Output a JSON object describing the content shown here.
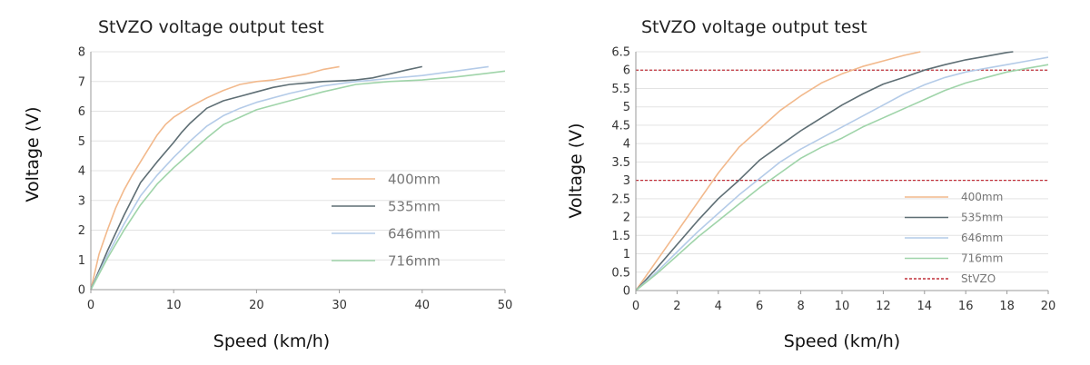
{
  "chart_data": [
    {
      "type": "line",
      "title": "StVZO  voltage  output  test",
      "xlabel": "Speed (km/h)",
      "ylabel": "Voltage (V)",
      "xlim": [
        0,
        50
      ],
      "ylim": [
        0,
        8
      ],
      "xticks": [
        "0",
        "10",
        "20",
        "30",
        "40",
        "50"
      ],
      "yticks": [
        "0",
        "1",
        "2",
        "3",
        "4",
        "5",
        "6",
        "7",
        "8"
      ],
      "legend_position": "center-right",
      "series": [
        {
          "name": "400mm",
          "color": "#f2b98c",
          "x": [
            0,
            1,
            2,
            3,
            4,
            5,
            6,
            7,
            8,
            9,
            10,
            12,
            14,
            16,
            18,
            20,
            22,
            24,
            26,
            28,
            30
          ],
          "y": [
            0,
            1.2,
            2.0,
            2.75,
            3.35,
            3.85,
            4.3,
            4.75,
            5.2,
            5.55,
            5.8,
            6.15,
            6.45,
            6.7,
            6.9,
            7.0,
            7.05,
            7.15,
            7.25,
            7.4,
            7.5
          ]
        },
        {
          "name": "535mm",
          "color": "#5e6e74",
          "x": [
            0,
            2,
            4,
            6,
            8,
            10,
            11,
            12,
            14,
            16,
            18,
            20,
            22,
            24,
            26,
            28,
            30,
            32,
            34,
            36,
            38,
            40
          ],
          "y": [
            0,
            1.3,
            2.5,
            3.6,
            4.3,
            4.95,
            5.3,
            5.6,
            6.1,
            6.35,
            6.5,
            6.65,
            6.8,
            6.9,
            6.95,
            7.0,
            7.02,
            7.05,
            7.12,
            7.25,
            7.38,
            7.5
          ]
        },
        {
          "name": "646mm",
          "color": "#b4cbe8",
          "x": [
            0,
            2,
            4,
            6,
            8,
            10,
            12,
            14,
            16,
            18,
            20,
            24,
            28,
            32,
            36,
            40,
            44,
            48
          ],
          "y": [
            0,
            1.15,
            2.2,
            3.15,
            3.85,
            4.45,
            5.0,
            5.5,
            5.85,
            6.1,
            6.3,
            6.6,
            6.85,
            7.0,
            7.1,
            7.2,
            7.35,
            7.5
          ]
        },
        {
          "name": "716mm",
          "color": "#9fd4a9",
          "x": [
            0,
            2,
            4,
            6,
            8,
            10,
            12,
            14,
            16,
            18,
            20,
            24,
            28,
            32,
            36,
            40,
            44,
            48,
            50
          ],
          "y": [
            0,
            1.05,
            2.0,
            2.85,
            3.55,
            4.1,
            4.6,
            5.1,
            5.55,
            5.8,
            6.05,
            6.35,
            6.65,
            6.9,
            7.0,
            7.05,
            7.15,
            7.28,
            7.35
          ]
        }
      ]
    },
    {
      "type": "line",
      "title": "StVZO  voltage  output  test",
      "xlabel": "Speed (km/h)",
      "ylabel": "Voltage (V)",
      "xlim": [
        0,
        20
      ],
      "ylim": [
        0,
        6.5
      ],
      "xticks": [
        "0",
        "2",
        "4",
        "6",
        "8",
        "10",
        "12",
        "14",
        "16",
        "18",
        "20"
      ],
      "yticks": [
        "0",
        "0.5",
        "1",
        "1.5",
        "2",
        "2.5",
        "3",
        "3.5",
        "4",
        "4.5",
        "5",
        "5.5",
        "6",
        "6.5"
      ],
      "legend_position": "bottom-right",
      "reference_lines": [
        {
          "name": "StVZO",
          "color": "#c0303a",
          "y": 3
        },
        {
          "name": "StVZO",
          "color": "#c0303a",
          "y": 6
        }
      ],
      "series": [
        {
          "name": "400mm",
          "color": "#f2b98c",
          "x": [
            0,
            1,
            2,
            3,
            4,
            5,
            6,
            7,
            8,
            9,
            10,
            11,
            12,
            13,
            13.8
          ],
          "y": [
            0,
            0.8,
            1.6,
            2.4,
            3.2,
            3.9,
            4.4,
            4.9,
            5.3,
            5.65,
            5.9,
            6.1,
            6.25,
            6.4,
            6.5
          ]
        },
        {
          "name": "535mm",
          "color": "#5e6e74",
          "x": [
            0,
            1,
            2,
            3,
            4,
            5,
            6,
            7,
            8,
            9,
            10,
            11,
            12,
            13,
            14,
            15,
            16,
            17,
            18,
            18.3
          ],
          "y": [
            0,
            0.6,
            1.25,
            1.9,
            2.5,
            3.0,
            3.55,
            3.95,
            4.35,
            4.7,
            5.05,
            5.35,
            5.62,
            5.8,
            6.0,
            6.15,
            6.28,
            6.38,
            6.48,
            6.5
          ]
        },
        {
          "name": "646mm",
          "color": "#b4cbe8",
          "x": [
            0,
            1,
            2,
            3,
            4,
            5,
            6,
            7,
            8,
            9,
            10,
            11,
            12,
            13,
            14,
            15,
            16,
            17,
            18,
            19,
            20
          ],
          "y": [
            0,
            0.5,
            1.05,
            1.6,
            2.1,
            2.6,
            3.05,
            3.5,
            3.85,
            4.15,
            4.45,
            4.75,
            5.05,
            5.35,
            5.6,
            5.8,
            5.95,
            6.05,
            6.15,
            6.25,
            6.35
          ]
        },
        {
          "name": "716mm",
          "color": "#9fd4a9",
          "x": [
            0,
            1,
            2,
            3,
            4,
            5,
            6,
            7,
            8,
            9,
            10,
            11,
            12,
            13,
            14,
            15,
            16,
            17,
            18,
            19,
            20
          ],
          "y": [
            0,
            0.45,
            0.95,
            1.45,
            1.9,
            2.35,
            2.8,
            3.2,
            3.6,
            3.9,
            4.15,
            4.45,
            4.7,
            4.95,
            5.2,
            5.45,
            5.65,
            5.8,
            5.95,
            6.05,
            6.15
          ]
        },
        {
          "name": "StVZO",
          "color": "#c0303a",
          "dashed": true,
          "legend_only": true,
          "x": [],
          "y": []
        }
      ]
    }
  ]
}
